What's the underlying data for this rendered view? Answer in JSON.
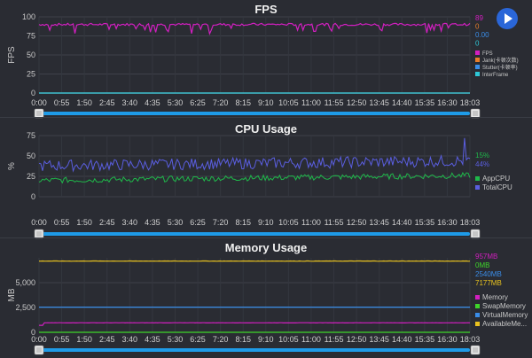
{
  "chart_data": [
    {
      "type": "line",
      "title": "FPS",
      "ylabel": "FPS",
      "ylim": [
        0,
        100
      ],
      "yticks": [
        0,
        25,
        50,
        75,
        100
      ],
      "ytick_labels": [
        "0",
        "25",
        "50",
        "75",
        "100"
      ],
      "grid": true,
      "x_ticks": [
        "0:00",
        "0:55",
        "1:50",
        "2:45",
        "3:40",
        "4:35",
        "5:30",
        "6:25",
        "7:20",
        "8:15",
        "9:10",
        "10:05",
        "11:00",
        "11:55",
        "12:50",
        "13:45",
        "14:40",
        "15:35",
        "16:30",
        "18:03"
      ],
      "series": [
        {
          "name": "FPS",
          "color": "#d21fc0",
          "current": "89",
          "typical": 90
        },
        {
          "name": "Jank(卡顿次数)",
          "color": "#e87d2a",
          "current": "0",
          "typical": 0
        },
        {
          "name": "Stutter(卡顿率)",
          "color": "#3a8de8",
          "current": "0.00",
          "typical": 0
        },
        {
          "name": "InterFrame",
          "color": "#2ec7d6",
          "current": "0",
          "typical": 0
        }
      ]
    },
    {
      "type": "line",
      "title": "CPU Usage",
      "ylabel": "%",
      "ylim": [
        0,
        75
      ],
      "yticks": [
        0,
        25,
        50,
        75
      ],
      "ytick_labels": [
        "0",
        "25",
        "50",
        "75"
      ],
      "grid": true,
      "x_ticks": [
        "0:00",
        "0:55",
        "1:50",
        "2:45",
        "3:40",
        "4:35",
        "5:30",
        "6:25",
        "7:20",
        "8:15",
        "9:10",
        "10:05",
        "11:00",
        "11:55",
        "12:50",
        "13:45",
        "14:40",
        "15:35",
        "16:30",
        "18:03"
      ],
      "series": [
        {
          "name": "AppCPU",
          "color": "#1fb84a",
          "current": "15%",
          "typical": 20
        },
        {
          "name": "TotalCPU",
          "color": "#5a5ee0",
          "current": "44%",
          "typical": 38
        }
      ]
    },
    {
      "type": "line",
      "title": "Memory Usage",
      "ylabel": "MB",
      "ylim": [
        0,
        7500
      ],
      "yticks": [
        0,
        2500,
        5000
      ],
      "ytick_labels": [
        "0",
        "2,500",
        "5,000"
      ],
      "grid": true,
      "x_ticks": [
        "0:00",
        "0:55",
        "1:50",
        "2:45",
        "3:40",
        "4:35",
        "5:30",
        "6:25",
        "7:20",
        "8:15",
        "9:10",
        "10:05",
        "11:00",
        "11:55",
        "12:50",
        "13:45",
        "14:40",
        "15:35",
        "16:30",
        "18:03"
      ],
      "series": [
        {
          "name": "Memory",
          "color": "#d21fc0",
          "current": "957MB",
          "typical": 957
        },
        {
          "name": "SwapMemory",
          "color": "#3fd62a",
          "current": "0MB",
          "typical": 0
        },
        {
          "name": "VirtualMemory",
          "color": "#3a8de8",
          "current": "2540MB",
          "typical": 2540
        },
        {
          "name": "AvailableMe...",
          "color": "#e8c21f",
          "current": "7177MB",
          "typical": 7177
        }
      ]
    }
  ],
  "ui": {
    "play_icon": "play-icon",
    "slider_handle_icon": "grip-handle-icon",
    "accent": "#1e9be8",
    "background": "#2a2c33"
  }
}
